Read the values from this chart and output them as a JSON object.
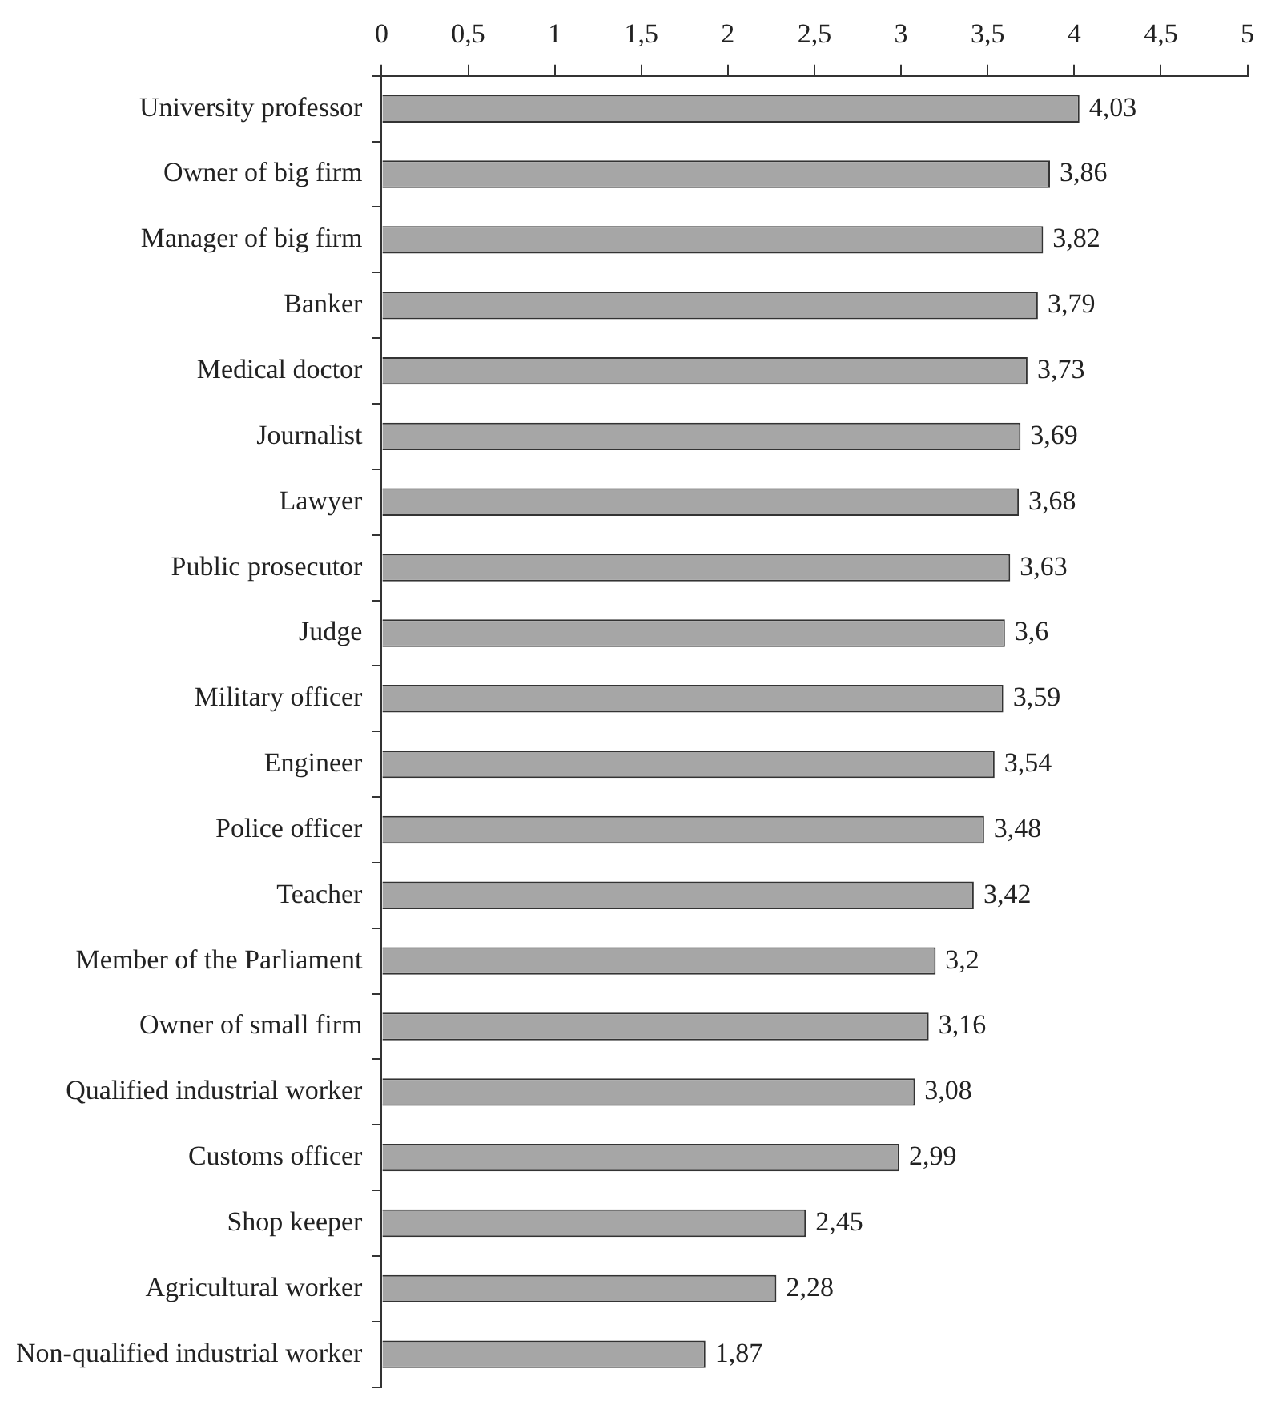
{
  "chart_data": {
    "type": "bar",
    "orientation": "horizontal",
    "categories": [
      "University professor",
      "Owner of big firm",
      "Manager of big firm",
      "Banker",
      "Medical doctor",
      "Journalist",
      "Lawyer",
      "Public prosecutor",
      "Judge",
      "Military officer",
      "Engineer",
      "Police officer",
      "Teacher",
      "Member of the Parliament",
      "Owner of small firm",
      "Qualified industrial worker",
      "Customs officer",
      "Shop keeper",
      "Agricultural worker",
      "Non-qualified industrial worker"
    ],
    "values": [
      4.03,
      3.86,
      3.82,
      3.79,
      3.73,
      3.69,
      3.68,
      3.63,
      3.6,
      3.59,
      3.54,
      3.48,
      3.42,
      3.2,
      3.16,
      3.08,
      2.99,
      2.45,
      2.28,
      1.87
    ],
    "value_labels": [
      "4,03",
      "3,86",
      "3,82",
      "3,79",
      "3,73",
      "3,69",
      "3,68",
      "3,63",
      "3,6",
      "3,59",
      "3,54",
      "3,48",
      "3,42",
      "3,2",
      "3,16",
      "3,08",
      "2,99",
      "2,45",
      "2,28",
      "1,87"
    ],
    "color": "#a6a6a6",
    "xlim": [
      0,
      5
    ],
    "xticks": [
      0,
      {
        "value": 0.5,
        "label": "0,5"
      },
      1,
      {
        "value": 1.5,
        "label": "1,5"
      },
      2,
      {
        "value": 2.5,
        "label": "2,5"
      },
      3,
      {
        "value": 3.5,
        "label": "3,5"
      },
      4,
      {
        "value": 4.5,
        "label": "4,5"
      },
      5
    ],
    "grid": false,
    "legend": false
  }
}
